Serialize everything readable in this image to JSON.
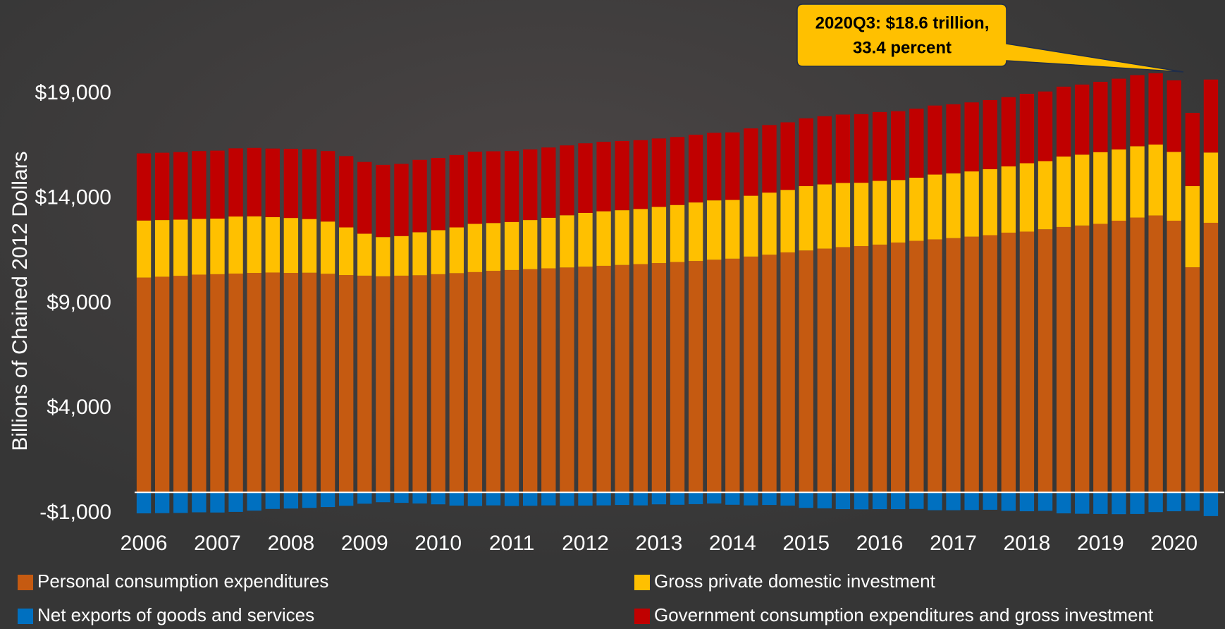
{
  "chart_data": {
    "type": "stacked-bar",
    "y_label": "Billions of Chained 2012 Dollars",
    "annotation": [
      "2020Q3: $18.6 trillion,",
      "33.4 percent"
    ],
    "categories": [
      "2006",
      null,
      null,
      null,
      "2007",
      null,
      null,
      null,
      "2008",
      null,
      null,
      null,
      "2009",
      null,
      null,
      null,
      "2010",
      null,
      null,
      null,
      "2011",
      null,
      null,
      null,
      "2012",
      null,
      null,
      null,
      "2013",
      null,
      null,
      null,
      "2014",
      null,
      null,
      null,
      "2015",
      null,
      null,
      null,
      "2016",
      null,
      null,
      null,
      "2017",
      null,
      null,
      null,
      "2018",
      null,
      null,
      null,
      "2019",
      null,
      null,
      null,
      "2020",
      null,
      null
    ],
    "series": [
      {
        "name": "Personal consumption expenditures",
        "color": "#c55a11",
        "values": [
          10240,
          10280,
          10320,
          10380,
          10400,
          10430,
          10460,
          10480,
          10460,
          10470,
          10420,
          10360,
          10330,
          10300,
          10330,
          10350,
          10400,
          10450,
          10500,
          10560,
          10600,
          10640,
          10680,
          10720,
          10760,
          10800,
          10840,
          10880,
          10930,
          10980,
          11030,
          11090,
          11140,
          11240,
          11330,
          11440,
          11530,
          11620,
          11690,
          11740,
          11810,
          11910,
          11990,
          12060,
          12120,
          12190,
          12260,
          12380,
          12430,
          12540,
          12650,
          12720,
          12800,
          12950,
          13100,
          13200,
          12950,
          10730,
          12850
        ]
      },
      {
        "name": "Gross private domestic investment",
        "color": "#ffc000",
        "values": [
          2720,
          2700,
          2680,
          2660,
          2650,
          2720,
          2700,
          2640,
          2620,
          2560,
          2490,
          2270,
          2000,
          1870,
          1890,
          2050,
          2100,
          2180,
          2300,
          2280,
          2290,
          2340,
          2410,
          2490,
          2560,
          2600,
          2610,
          2630,
          2680,
          2720,
          2790,
          2830,
          2800,
          2900,
          2960,
          2980,
          3070,
          3060,
          3060,
          3020,
          3040,
          2980,
          3010,
          3090,
          3090,
          3110,
          3150,
          3160,
          3260,
          3250,
          3360,
          3380,
          3420,
          3400,
          3400,
          3380,
          3280,
          3870,
          3350
        ]
      },
      {
        "name": "Net exports of goods and services",
        "color": "#0070c0",
        "values": [
          -1000,
          -990,
          -980,
          -950,
          -960,
          -930,
          -870,
          -790,
          -770,
          -740,
          -700,
          -640,
          -540,
          -470,
          -500,
          -530,
          -570,
          -630,
          -650,
          -620,
          -650,
          -640,
          -620,
          -640,
          -630,
          -620,
          -600,
          -620,
          -570,
          -590,
          -560,
          -530,
          -590,
          -620,
          -600,
          -630,
          -740,
          -760,
          -800,
          -810,
          -800,
          -800,
          -790,
          -850,
          -850,
          -840,
          -830,
          -880,
          -900,
          -880,
          -1000,
          -1020,
          -1030,
          -1040,
          -1030,
          -940,
          -900,
          -880,
          -1130
        ]
      },
      {
        "name": "Government consumption expenditures and gross investment",
        "color": "#c00000",
        "values": [
          3200,
          3210,
          3220,
          3230,
          3240,
          3250,
          3260,
          3270,
          3300,
          3330,
          3360,
          3400,
          3420,
          3440,
          3440,
          3450,
          3440,
          3450,
          3440,
          3420,
          3380,
          3370,
          3350,
          3330,
          3320,
          3310,
          3300,
          3280,
          3260,
          3240,
          3230,
          3220,
          3220,
          3210,
          3220,
          3220,
          3230,
          3250,
          3260,
          3270,
          3280,
          3280,
          3290,
          3290,
          3290,
          3290,
          3290,
          3300,
          3310,
          3320,
          3330,
          3340,
          3350,
          3370,
          3390,
          3400,
          3410,
          3490,
          3480
        ]
      }
    ],
    "ylim": [
      -1000,
      23000
    ],
    "yticks": [
      {
        "value": -1000,
        "label": "-$1,000"
      },
      {
        "value": 4000,
        "label": "$4,000"
      },
      {
        "value": 9000,
        "label": "$9,000"
      },
      {
        "value": 14000,
        "label": "$14,000"
      },
      {
        "value": 19000,
        "label": "$19,000"
      }
    ],
    "grid": false
  }
}
